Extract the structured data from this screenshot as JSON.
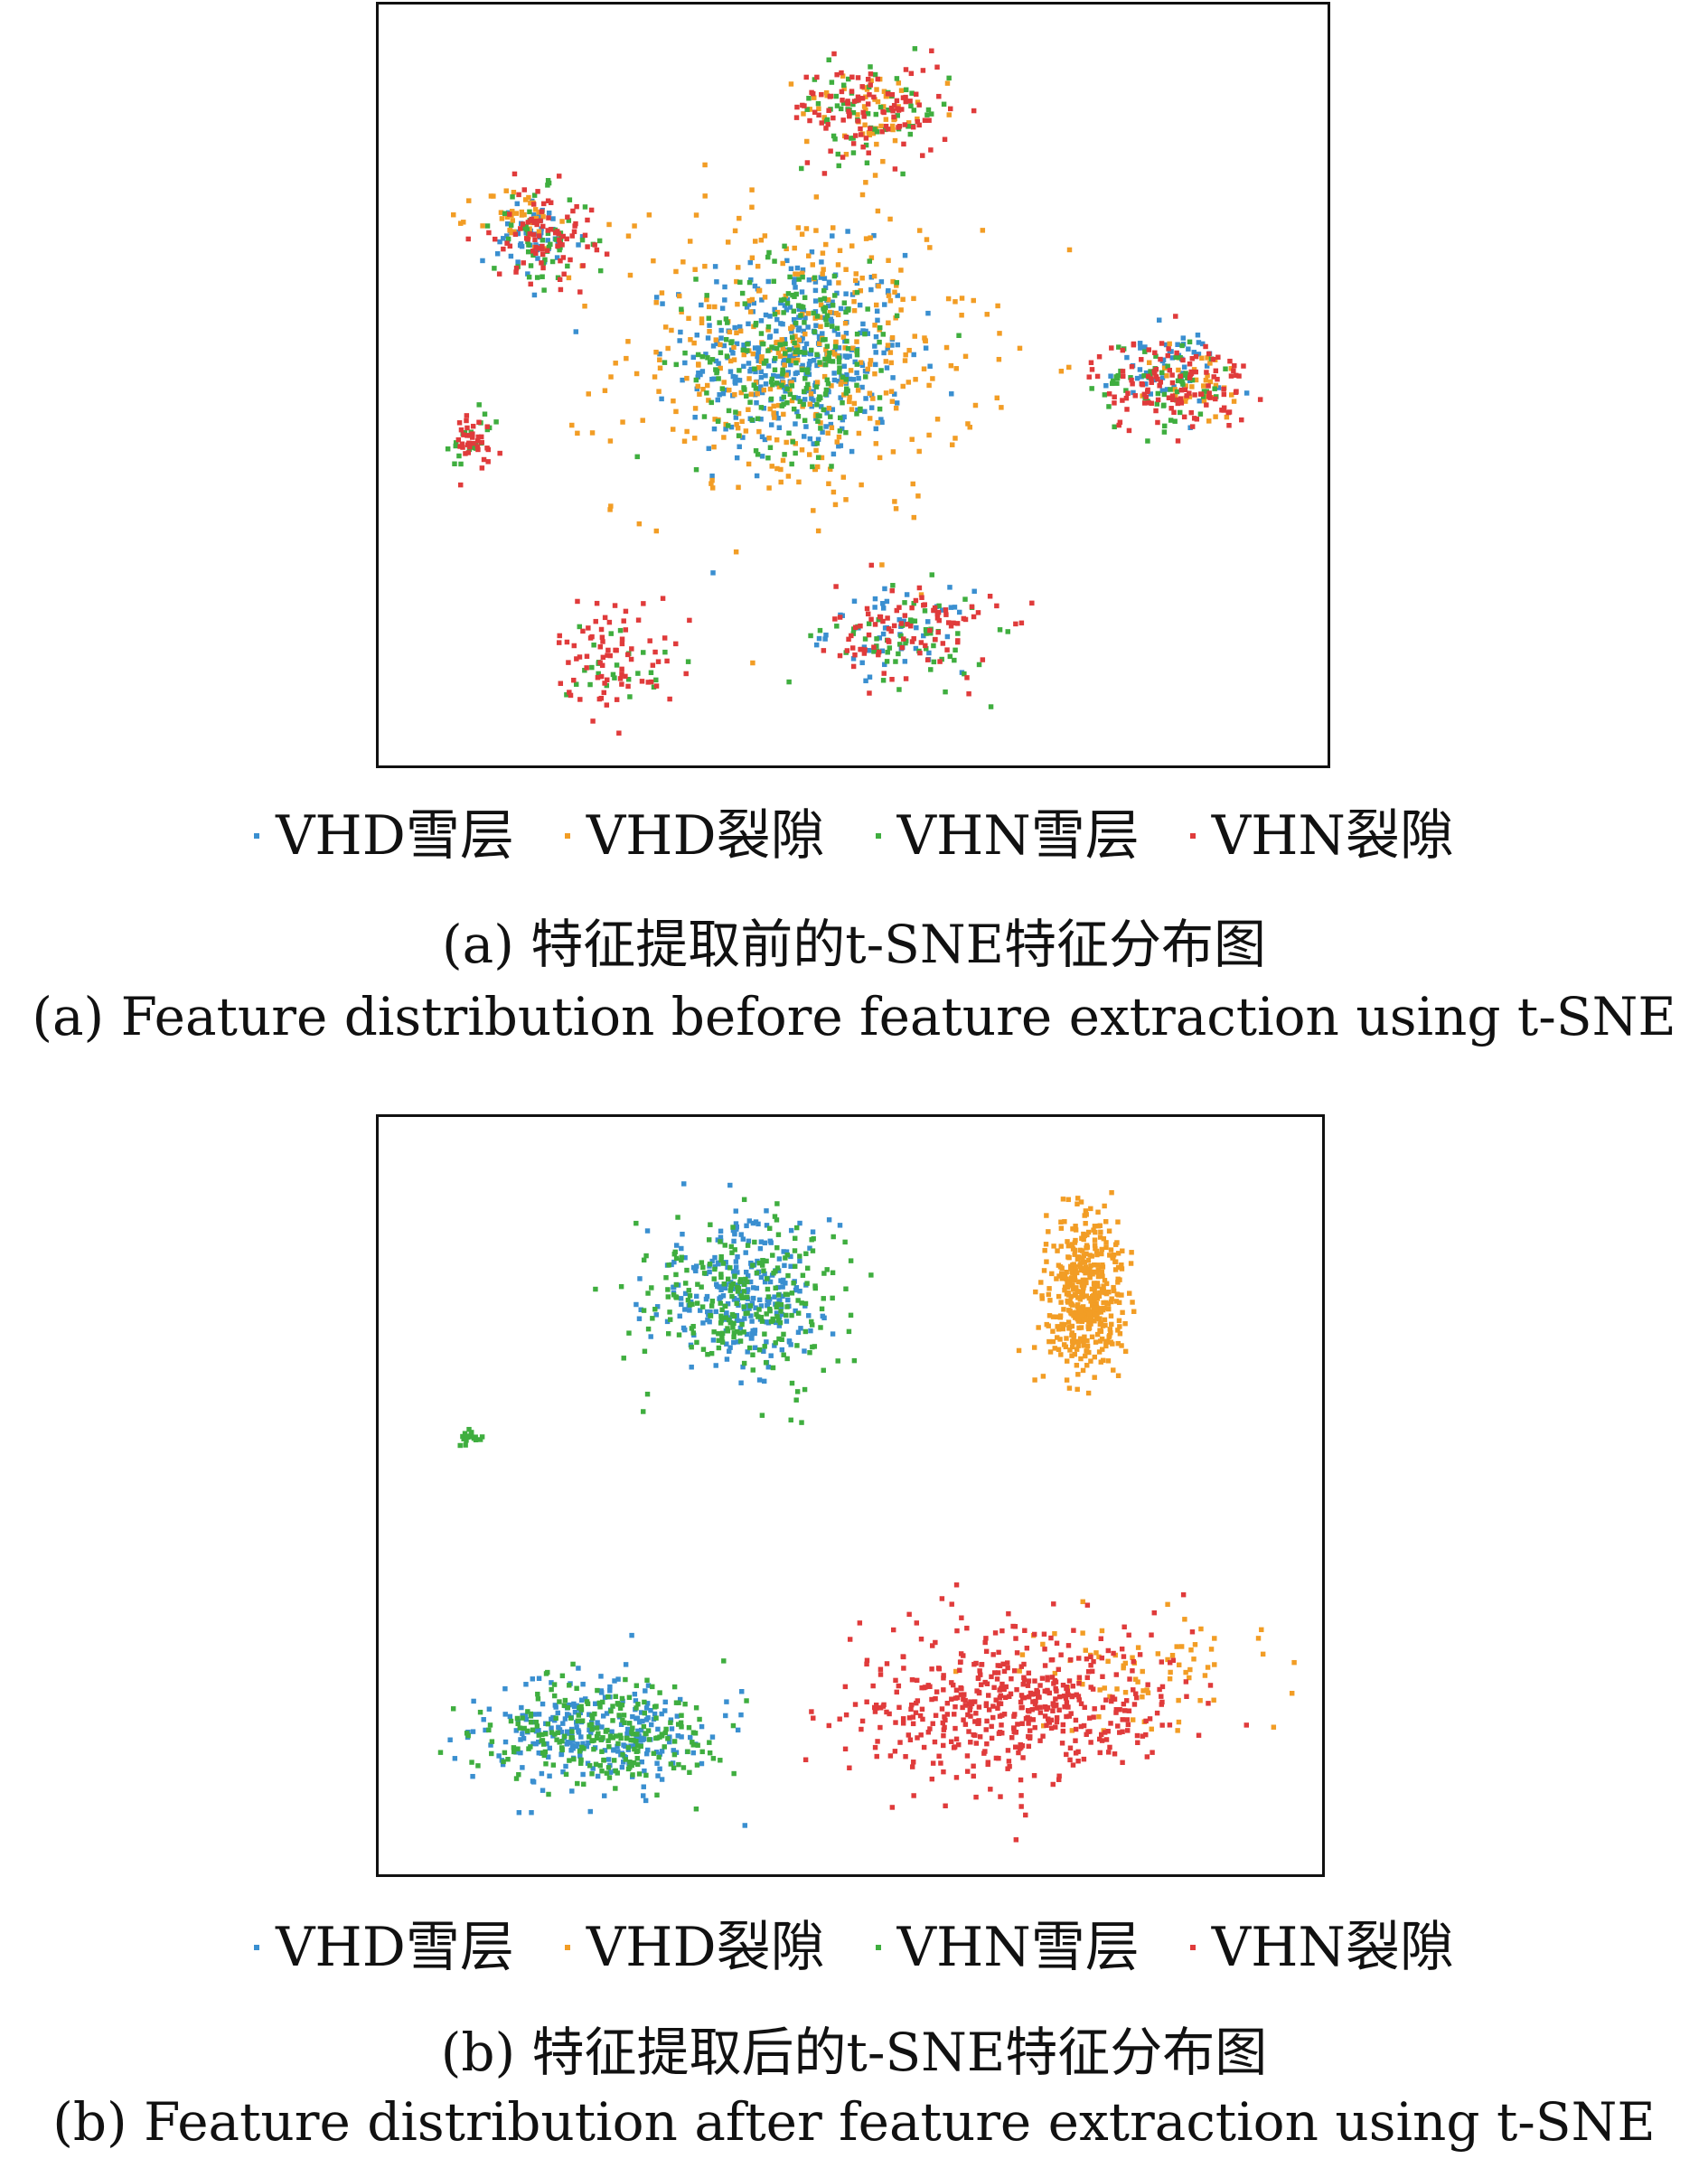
{
  "legend": {
    "items": [
      {
        "label": "VHD雪层",
        "color": "#3a8fd0"
      },
      {
        "label": "VHD裂隙",
        "color": "#f29d25"
      },
      {
        "label": "VHN雪层",
        "color": "#3fae3f"
      },
      {
        "label": "VHN裂隙",
        "color": "#e03b3b"
      }
    ]
  },
  "panel_a": {
    "caption_cn": "(a) 特征提取前的t-SNE特征分布图",
    "caption_en": "(a) Feature distribution before feature extraction using t-SNE"
  },
  "panel_b": {
    "caption_cn": "(b) 特征提取后的t-SNE特征分布图",
    "caption_en": "(b) Feature distribution after feature extraction using t-SNE"
  },
  "chart_data": [
    {
      "type": "scatter",
      "title": "",
      "xlabel": "",
      "ylabel": "",
      "axes_visible": false,
      "grid": false,
      "legend_placement": "bottom",
      "xlim": [
        0,
        100
      ],
      "ylim": [
        0,
        100
      ],
      "series": [
        {
          "name": "VHD雪层",
          "color": "#3a8fd0",
          "clusters": [
            {
              "center": [
                44,
                54
              ],
              "spread": [
                11,
                13
              ],
              "share": 0.7
            },
            {
              "center": [
                84,
                52
              ],
              "spread": [
                6,
                5
              ],
              "share": 0.1
            },
            {
              "center": [
                55,
                16
              ],
              "spread": [
                7,
                5
              ],
              "share": 0.1
            },
            {
              "center": [
                15,
                70
              ],
              "spread": [
                5,
                5
              ],
              "share": 0.1
            }
          ]
        },
        {
          "name": "VHD裂隙",
          "color": "#f29d25",
          "clusters": [
            {
              "center": [
                44,
                54
              ],
              "spread": [
                18,
                20
              ],
              "share": 0.75
            },
            {
              "center": [
                52,
                88
              ],
              "spread": [
                7,
                5
              ],
              "share": 0.1
            },
            {
              "center": [
                13,
                73
              ],
              "spread": [
                4,
                4
              ],
              "share": 0.08
            },
            {
              "center": [
                88,
                50
              ],
              "spread": [
                5,
                5
              ],
              "share": 0.07
            }
          ]
        },
        {
          "name": "VHN雪层",
          "color": "#3fae3f",
          "clusters": [
            {
              "center": [
                44,
                54
              ],
              "spread": [
                10,
                12
              ],
              "share": 0.45
            },
            {
              "center": [
                52,
                88
              ],
              "spread": [
                8,
                6
              ],
              "share": 0.12
            },
            {
              "center": [
                16,
                70
              ],
              "spread": [
                5,
                6
              ],
              "share": 0.1
            },
            {
              "center": [
                84,
                50
              ],
              "spread": [
                7,
                6
              ],
              "share": 0.12
            },
            {
              "center": [
                56,
                15
              ],
              "spread": [
                8,
                6
              ],
              "share": 0.12
            },
            {
              "center": [
                24,
                12
              ],
              "spread": [
                5,
                6
              ],
              "share": 0.05
            },
            {
              "center": [
                8,
                42
              ],
              "spread": [
                3,
                4
              ],
              "share": 0.04
            }
          ]
        },
        {
          "name": "VHN裂隙",
          "color": "#e03b3b",
          "clusters": [
            {
              "center": [
                52,
                88
              ],
              "spread": [
                8,
                6
              ],
              "share": 0.2
            },
            {
              "center": [
                16,
                71
              ],
              "spread": [
                5,
                6
              ],
              "share": 0.16
            },
            {
              "center": [
                85,
                50
              ],
              "spread": [
                8,
                6
              ],
              "share": 0.24
            },
            {
              "center": [
                57,
                16
              ],
              "spread": [
                8,
                6
              ],
              "share": 0.18
            },
            {
              "center": [
                24,
                13
              ],
              "spread": [
                6,
                7
              ],
              "share": 0.15
            },
            {
              "center": [
                8,
                42
              ],
              "spread": [
                3,
                4
              ],
              "share": 0.07
            }
          ]
        }
      ]
    },
    {
      "type": "scatter",
      "title": "",
      "xlabel": "",
      "ylabel": "",
      "axes_visible": false,
      "grid": false,
      "legend_placement": "bottom",
      "xlim": [
        0,
        100
      ],
      "ylim": [
        0,
        100
      ],
      "series": [
        {
          "name": "VHD雪层",
          "color": "#3a8fd0",
          "clusters": [
            {
              "center": [
                38,
                78
              ],
              "spread": [
                9,
                9
              ],
              "share": 0.5
            },
            {
              "center": [
                22,
                17
              ],
              "spread": [
                11,
                7
              ],
              "share": 0.5
            }
          ]
        },
        {
          "name": "VHD裂隙",
          "color": "#f29d25",
          "clusters": [
            {
              "center": [
                76,
                78
              ],
              "spread": [
                4,
                10
              ],
              "share": 0.85
            },
            {
              "center": [
                82,
                25
              ],
              "spread": [
                12,
                7
              ],
              "share": 0.15
            }
          ]
        },
        {
          "name": "VHN雪层",
          "color": "#3fae3f",
          "clusters": [
            {
              "center": [
                38,
                78
              ],
              "spread": [
                10,
                10
              ],
              "share": 0.48
            },
            {
              "center": [
                22,
                17
              ],
              "spread": [
                12,
                7
              ],
              "share": 0.48
            },
            {
              "center": [
                8,
                58
              ],
              "spread": [
                1,
                1
              ],
              "share": 0.04
            }
          ]
        },
        {
          "name": "VHN裂隙",
          "color": "#e03b3b",
          "clusters": [
            {
              "center": [
                68,
                21
              ],
              "spread": [
                16,
                10
              ],
              "share": 1.0
            }
          ]
        }
      ]
    }
  ]
}
